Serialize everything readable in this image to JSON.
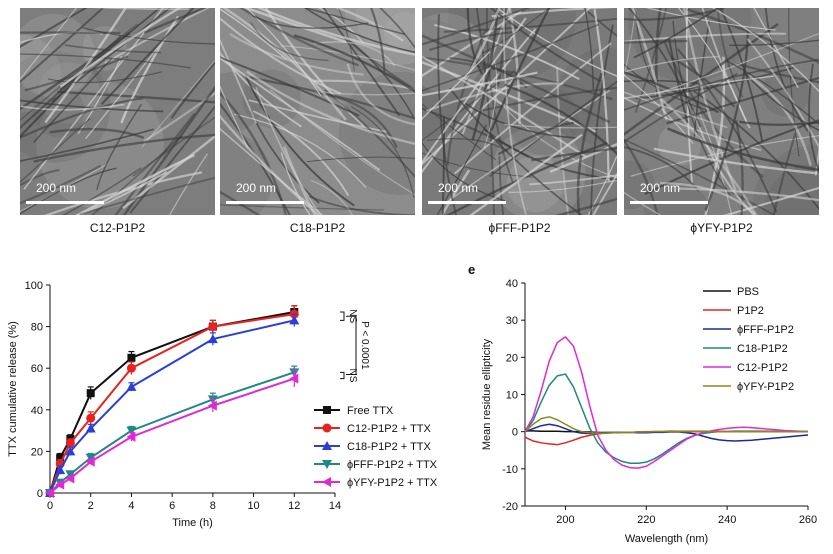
{
  "tem_panels": [
    {
      "scale_label": "200 nm",
      "caption": "C12-P1P2"
    },
    {
      "scale_label": "200 nm",
      "caption": "C18-P1P2"
    },
    {
      "scale_label": "200 nm",
      "caption": "ϕFFF-P1P2"
    },
    {
      "scale_label": "200 nm",
      "caption": "ϕYFY-P1P2"
    }
  ],
  "panel_e_letter": "e",
  "chart_data": [
    {
      "type": "line",
      "title": "",
      "xlabel": "Time (h)",
      "ylabel": "TTX cumulative release (%)",
      "xlim": [
        0,
        14
      ],
      "ylim": [
        0,
        100
      ],
      "xticks": [
        0,
        2,
        4,
        6,
        8,
        10,
        12,
        14
      ],
      "yticks": [
        0,
        20,
        40,
        60,
        80,
        100
      ],
      "grid": false,
      "legend_position": "lower-right",
      "x": [
        0,
        0.5,
        1,
        2,
        4,
        8,
        12
      ],
      "series": [
        {
          "name": "Free TTX",
          "color": "#111111",
          "marker": "square",
          "values": [
            0,
            17,
            26,
            48,
            65,
            80,
            87
          ],
          "errors": [
            0,
            2,
            2,
            3,
            3,
            3,
            3
          ]
        },
        {
          "name": "C12-P1P2 + TTX",
          "color": "#e8231f",
          "marker": "circle",
          "values": [
            0,
            14,
            24,
            36,
            60,
            80,
            86
          ],
          "errors": [
            0,
            2,
            2,
            3,
            3,
            3,
            4
          ]
        },
        {
          "name": "C18-P1P2 + TTX",
          "color": "#2b3fd6",
          "marker": "triangle-up",
          "values": [
            0,
            11,
            20,
            31,
            51,
            74,
            83
          ],
          "errors": [
            0,
            2,
            2,
            2,
            2,
            3,
            3
          ]
        },
        {
          "name": "ϕFFF-P1P2 + TTX",
          "color": "#1e8a86",
          "marker": "triangle-down",
          "values": [
            0,
            5,
            9,
            17,
            30,
            45,
            58
          ],
          "errors": [
            0,
            1,
            1,
            2,
            2,
            3,
            3
          ]
        },
        {
          "name": "ϕYFY-P1P2 + TTX",
          "color": "#e128d8",
          "marker": "triangle-left",
          "values": [
            0,
            4,
            7,
            15,
            27,
            42,
            55
          ],
          "errors": [
            0,
            1,
            1,
            1,
            2,
            3,
            4
          ]
        }
      ],
      "annotations": {
        "ns_top": "NS",
        "ns_bottom": "NS",
        "p_value": "P < 0.0001"
      }
    },
    {
      "type": "line",
      "title": "",
      "xlabel": "Wavelength (nm)",
      "ylabel": "Mean residue ellipticity",
      "xlim": [
        190,
        260
      ],
      "ylim": [
        -20,
        40
      ],
      "xticks": [
        200,
        220,
        240,
        260
      ],
      "yticks": [
        -20,
        -10,
        0,
        10,
        20,
        30,
        40
      ],
      "grid": false,
      "legend_position": "top-right",
      "x": [
        190,
        192,
        194,
        196,
        198,
        200,
        202,
        204,
        206,
        208,
        210,
        212,
        214,
        216,
        218,
        220,
        222,
        224,
        226,
        228,
        230,
        232,
        234,
        236,
        238,
        240,
        242,
        244,
        246,
        248,
        250,
        252,
        254,
        256,
        258,
        260
      ],
      "series": [
        {
          "name": "PBS",
          "color": "#111111",
          "values": [
            0.2,
            0.2,
            0.1,
            0.1,
            0.1,
            0,
            0,
            0,
            -0.1,
            -0.2,
            -0.3,
            -0.3,
            -0.2,
            -0.2,
            -0.1,
            -0.1,
            0,
            0,
            0.1,
            0.1,
            0.1,
            0,
            0,
            0,
            0,
            0,
            0.1,
            0.1,
            0.1,
            0.1,
            0.1,
            0,
            0,
            0,
            0,
            0
          ]
        },
        {
          "name": "P1P2",
          "color": "#e8231f",
          "values": [
            -1.5,
            -2.5,
            -3,
            -3.3,
            -3.5,
            -3,
            -2.3,
            -1.5,
            -1,
            -0.6,
            -0.4,
            -0.3,
            -0.2,
            -0.2,
            -0.1,
            0,
            0,
            0,
            0,
            0.1,
            0.1,
            0.1,
            0.1,
            0.1,
            0.1,
            0,
            0,
            0,
            0,
            0,
            0,
            0,
            0,
            0,
            0,
            0
          ]
        },
        {
          "name": "ϕFFF-P1P2",
          "color": "#1a2a9a",
          "values": [
            0,
            0.8,
            1.6,
            2,
            1.6,
            0.8,
            0,
            -0.4,
            -0.5,
            -0.3,
            -0.2,
            -0.2,
            -0.2,
            -0.2,
            -0.3,
            -0.3,
            -0.2,
            -0.2,
            -0.1,
            -0.1,
            -0.3,
            -0.6,
            -1.2,
            -1.8,
            -2.2,
            -2.4,
            -2.5,
            -2.4,
            -2.3,
            -2.1,
            -1.9,
            -1.7,
            -1.5,
            -1.3,
            -1.1,
            -0.9
          ]
        },
        {
          "name": "C18-P1P2",
          "color": "#1e8a7a",
          "values": [
            0,
            3,
            8,
            12.5,
            15,
            15.5,
            12,
            6.5,
            1,
            -3,
            -5.5,
            -7,
            -8,
            -8.5,
            -8.5,
            -8.2,
            -7.3,
            -6,
            -4.5,
            -3,
            -1.8,
            -1,
            -0.5,
            -0.2,
            0,
            0,
            0,
            0,
            0,
            0,
            0,
            0,
            0,
            0,
            0,
            0
          ]
        },
        {
          "name": "C12-P1P2",
          "color": "#e128d8",
          "values": [
            0,
            4,
            11,
            19,
            24,
            25.5,
            23,
            16,
            7,
            -1,
            -5,
            -7.5,
            -9,
            -9.7,
            -9.8,
            -9.3,
            -8,
            -6.5,
            -5,
            -3.5,
            -2,
            -1,
            -0.3,
            0.2,
            0.6,
            0.9,
            1.1,
            1.2,
            1.1,
            0.9,
            0.7,
            0.5,
            0.3,
            0.2,
            0.1,
            0
          ]
        },
        {
          "name": "ϕYFY-P1P2",
          "color": "#8a8a1a",
          "values": [
            0,
            2,
            3.5,
            4,
            3.2,
            2,
            0.8,
            0,
            -0.3,
            -0.4,
            -0.4,
            -0.3,
            -0.2,
            -0.2,
            -0.1,
            -0.1,
            0,
            0,
            0,
            0,
            0,
            0,
            0,
            0,
            0,
            0,
            0,
            0,
            0,
            0,
            0,
            0,
            0,
            0,
            0,
            0
          ]
        }
      ]
    }
  ]
}
